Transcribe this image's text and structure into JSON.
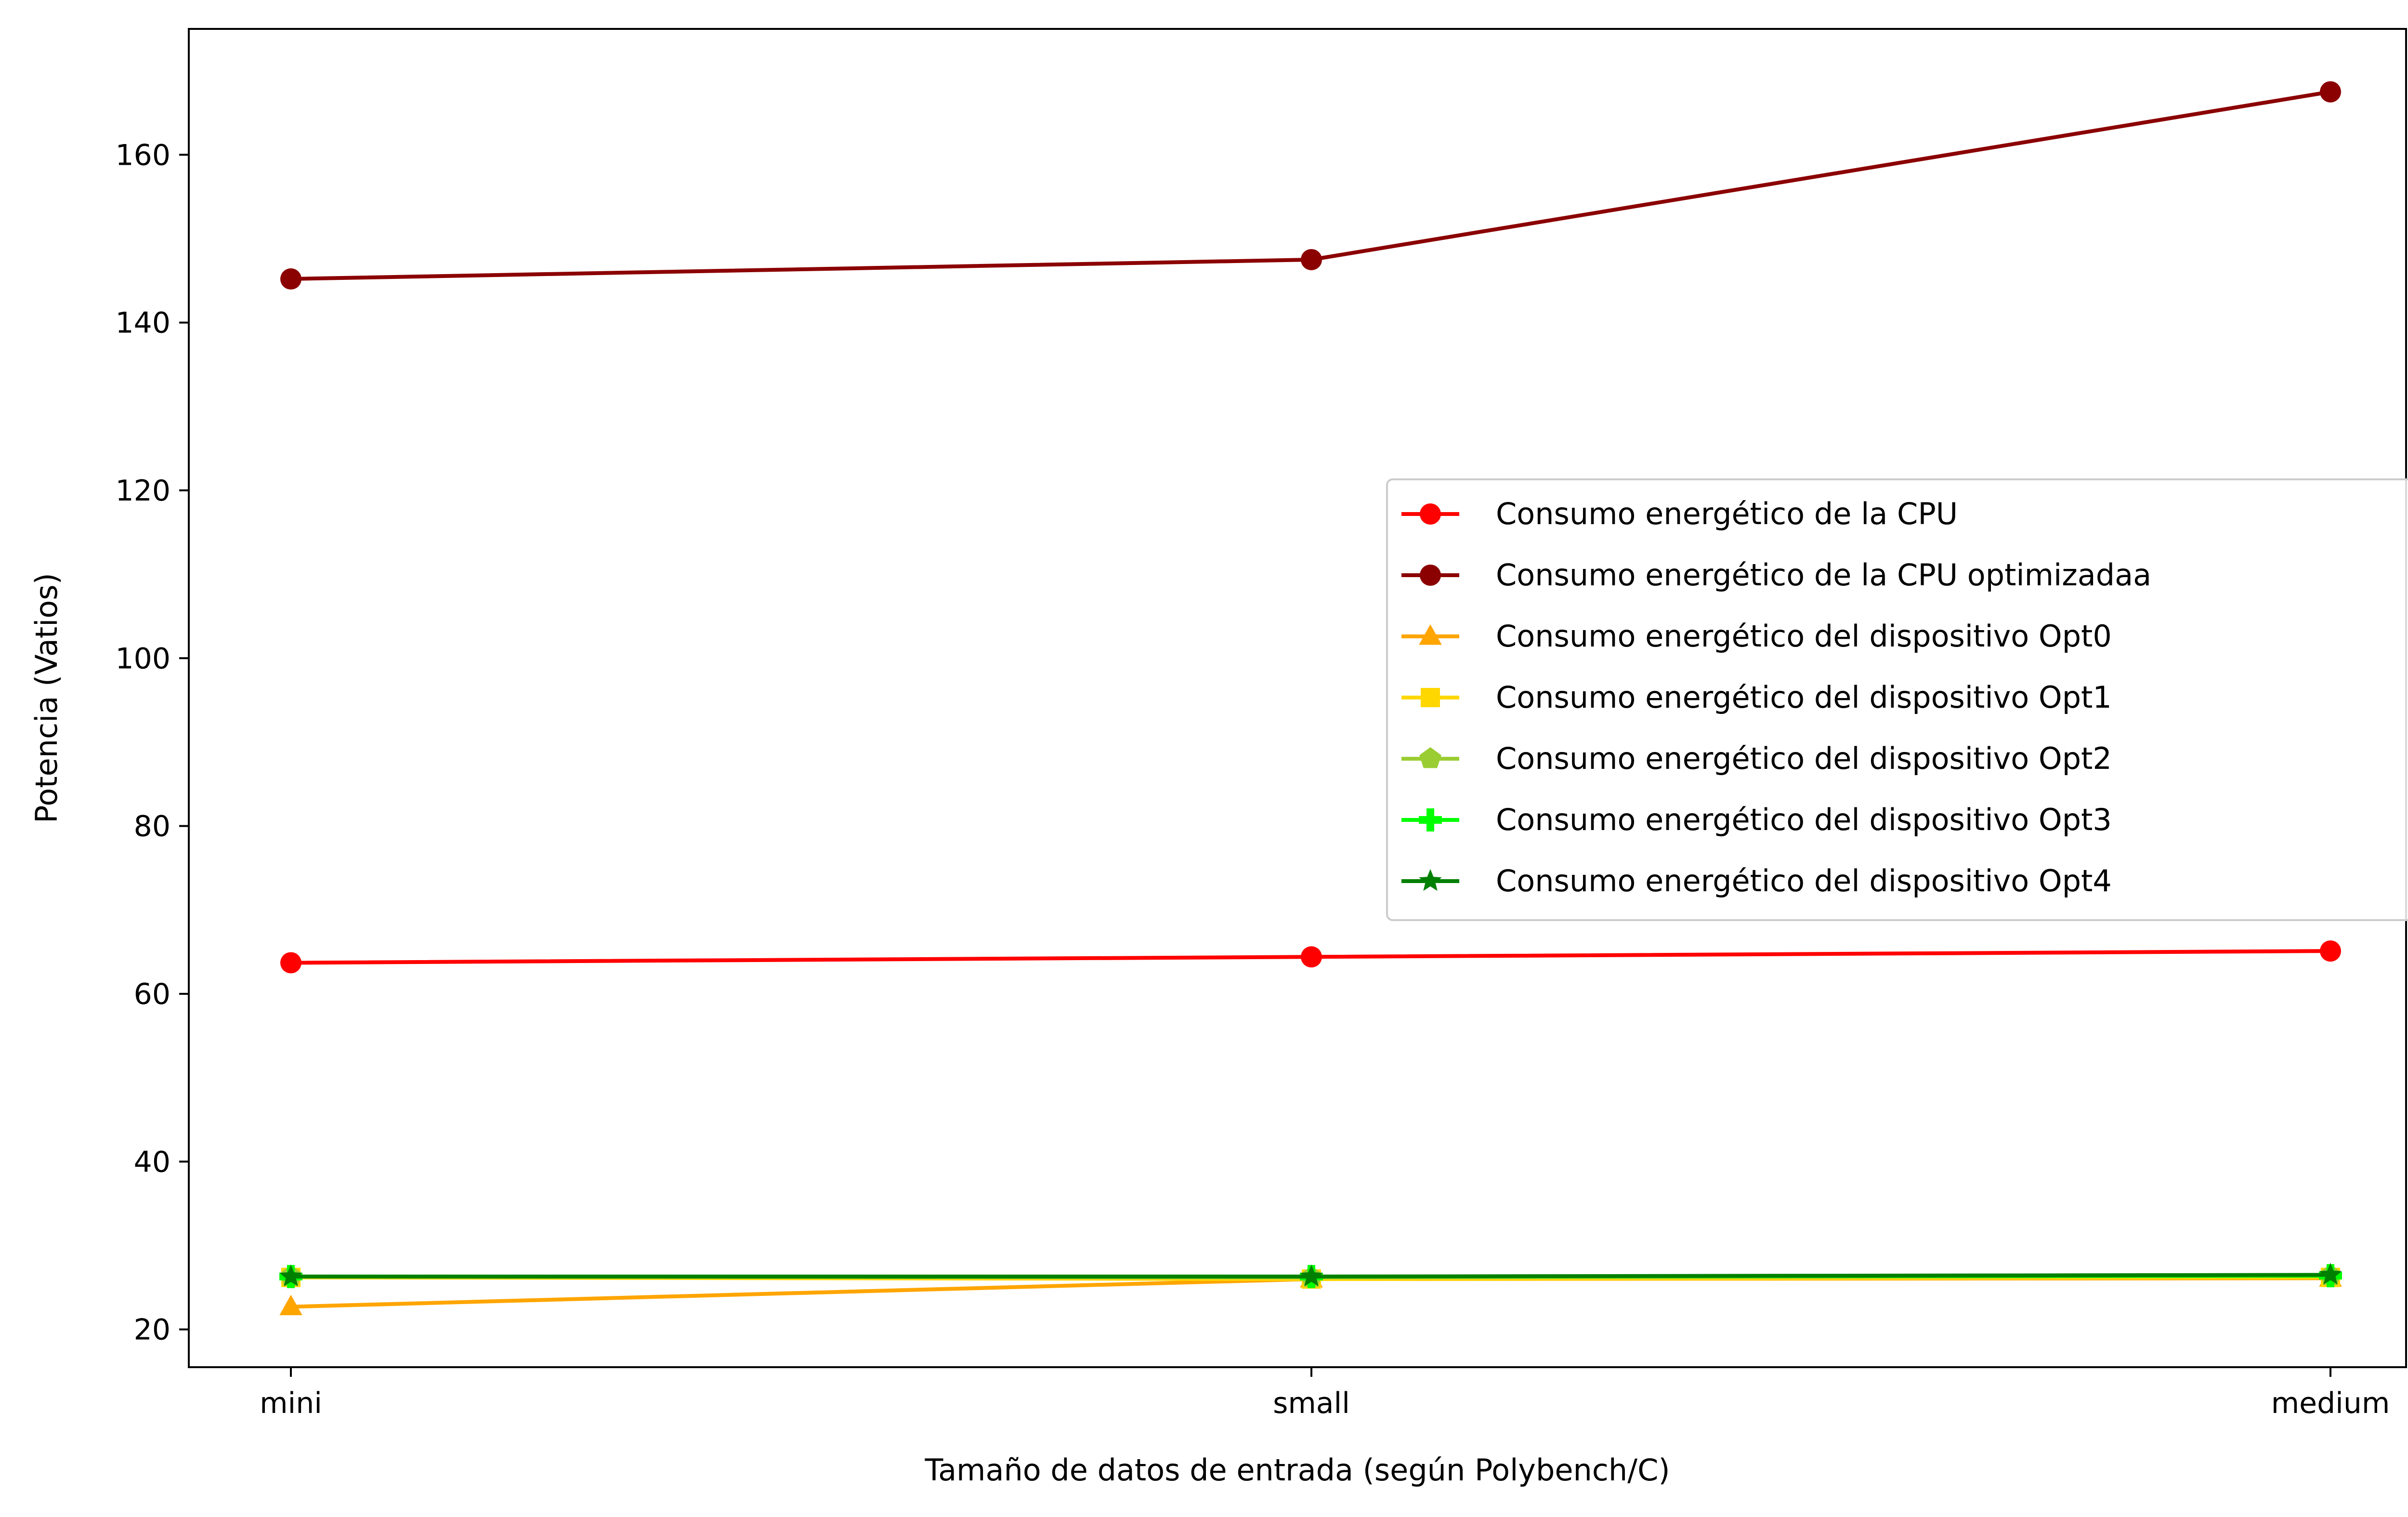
{
  "chart_data": {
    "type": "line",
    "categories": [
      "mini",
      "small",
      "medium"
    ],
    "xlabel": "Tamaño de datos de entrada (según Polybench/C)",
    "ylabel": "Potencia (Vatios)",
    "ylim": [
      15.5,
      175
    ],
    "yticks": [
      20,
      40,
      60,
      80,
      100,
      120,
      140,
      160
    ],
    "grid": false,
    "legend_position": "center-right",
    "series": [
      {
        "name": "Consumo energético de la CPU",
        "color": "#ff0000",
        "marker": "circle",
        "values": [
          63.7,
          64.4,
          65.1
        ]
      },
      {
        "name": "Consumo energético de la CPU optimizadaa",
        "color": "#8b0000",
        "marker": "circle",
        "values": [
          145.2,
          147.5,
          167.5
        ]
      },
      {
        "name": "Consumo energético del dispositivo Opt0",
        "color": "#ffa500",
        "marker": "triangle",
        "values": [
          22.7,
          26.0,
          26.1
        ]
      },
      {
        "name": "Consumo energético del dispositivo Opt1",
        "color": "#ffd700",
        "marker": "square",
        "values": [
          26.2,
          26.0,
          26.2
        ]
      },
      {
        "name": "Consumo energético del dispositivo Opt2",
        "color": "#9acd32",
        "marker": "pentagon",
        "values": [
          26.3,
          26.2,
          26.4
        ]
      },
      {
        "name": "Consumo energético del dispositivo Opt3",
        "color": "#00ff00",
        "marker": "plus",
        "values": [
          26.3,
          26.3,
          26.4
        ]
      },
      {
        "name": "Consumo energético del dispositivo Opt4",
        "color": "#008000",
        "marker": "star",
        "values": [
          26.3,
          26.3,
          26.5
        ]
      }
    ]
  }
}
